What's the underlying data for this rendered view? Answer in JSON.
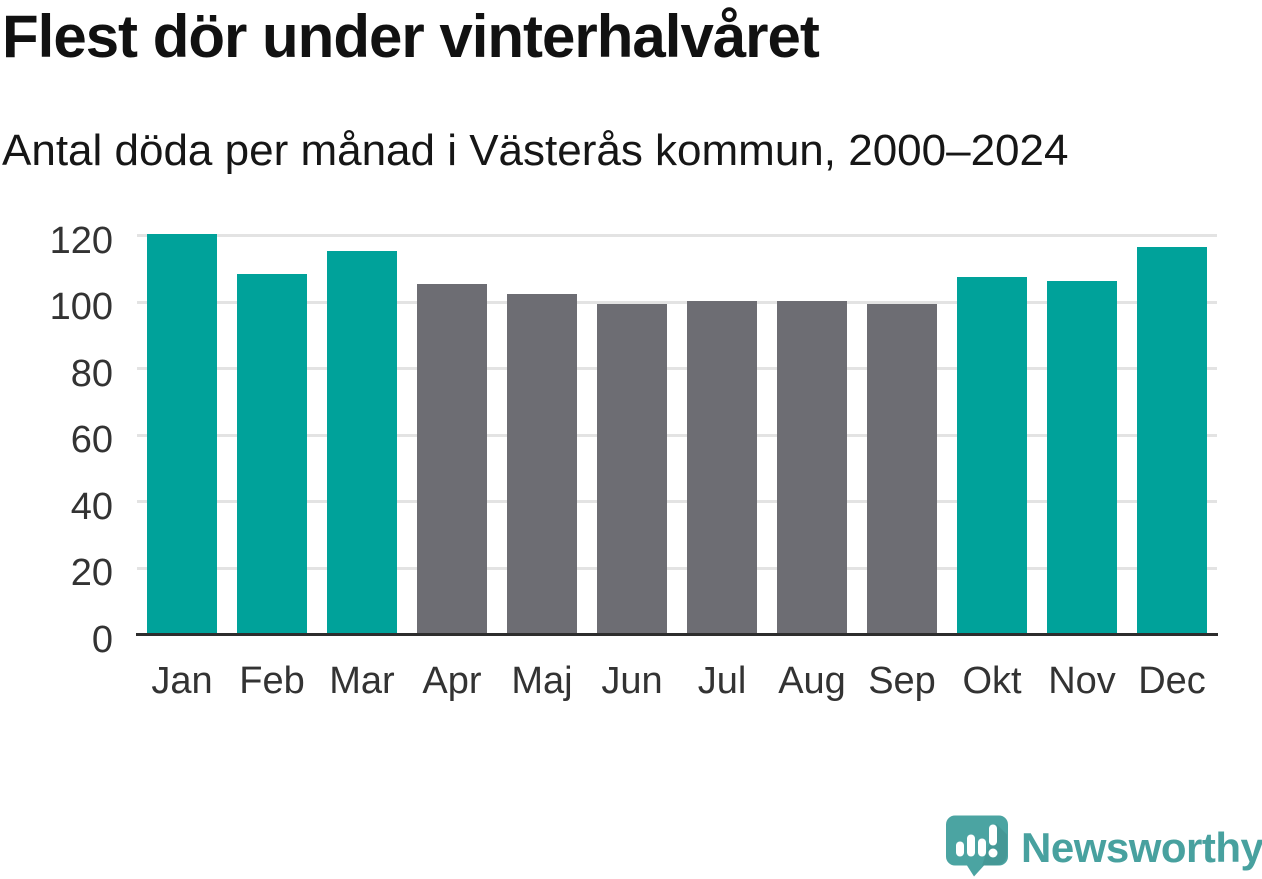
{
  "header": {
    "title": "Flest dör under vinterhalvåret",
    "subtitle": "Antal döda per månad i Västerås kommun, 2000–2024"
  },
  "chart_data": {
    "type": "bar",
    "title": "Flest dör under vinterhalvåret",
    "subtitle": "Antal döda per månad i Västerås kommun, 2000–2024",
    "xlabel": "",
    "ylabel": "",
    "categories": [
      "Jan",
      "Feb",
      "Mar",
      "Apr",
      "Maj",
      "Jun",
      "Jul",
      "Aug",
      "Sep",
      "Okt",
      "Nov",
      "Dec"
    ],
    "values": [
      120,
      108,
      115,
      105,
      102,
      99,
      100,
      100,
      99,
      107,
      106,
      116
    ],
    "winter_months": [
      true,
      true,
      true,
      false,
      false,
      false,
      false,
      false,
      false,
      true,
      true,
      true
    ],
    "colors": {
      "winter_bar": "#00a29a",
      "summer_bar": "#6d6d73",
      "gridline": "#e3e3e3",
      "axis_line": "#2d2d2d",
      "tick_label": "#333333"
    },
    "ylim": [
      0,
      120
    ],
    "yticks": [
      0,
      20,
      40,
      60,
      80,
      100,
      120
    ],
    "grid": true,
    "legend_position": "none"
  },
  "branding": {
    "logo_text": "Newsworthy",
    "logo_color": "#48a19f",
    "logo_icon": "newsworthy-bubble-chart-icon",
    "logo_icon_color": "#4ba4a2"
  }
}
